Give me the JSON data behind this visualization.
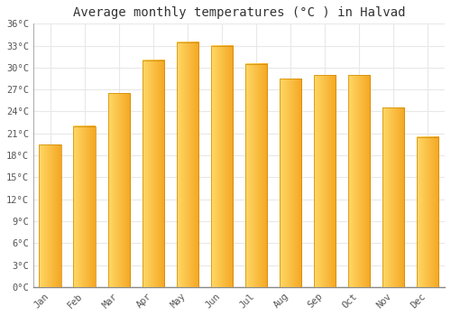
{
  "title": "Average monthly temperatures (°C ) in Halvad",
  "months": [
    "Jan",
    "Feb",
    "Mar",
    "Apr",
    "May",
    "Jun",
    "Jul",
    "Aug",
    "Sep",
    "Oct",
    "Nov",
    "Dec"
  ],
  "values": [
    19.5,
    22.0,
    26.5,
    31.0,
    33.5,
    33.0,
    30.5,
    28.5,
    29.0,
    29.0,
    24.5,
    20.5
  ],
  "bar_color_left": "#FFD966",
  "bar_color_right": "#F5A623",
  "bar_color_mid": "#FFBB33",
  "background_color": "#FFFFFF",
  "grid_color": "#E8E8E8",
  "axis_line_color": "#888888",
  "ylim": [
    0,
    36
  ],
  "yticks": [
    0,
    3,
    6,
    9,
    12,
    15,
    18,
    21,
    24,
    27,
    30,
    33,
    36
  ],
  "ytick_labels": [
    "0°C",
    "3°C",
    "6°C",
    "9°C",
    "12°C",
    "15°C",
    "18°C",
    "21°C",
    "24°C",
    "27°C",
    "30°C",
    "33°C",
    "36°C"
  ],
  "title_fontsize": 10,
  "tick_fontsize": 7.5,
  "font_family": "monospace",
  "bar_width": 0.65
}
